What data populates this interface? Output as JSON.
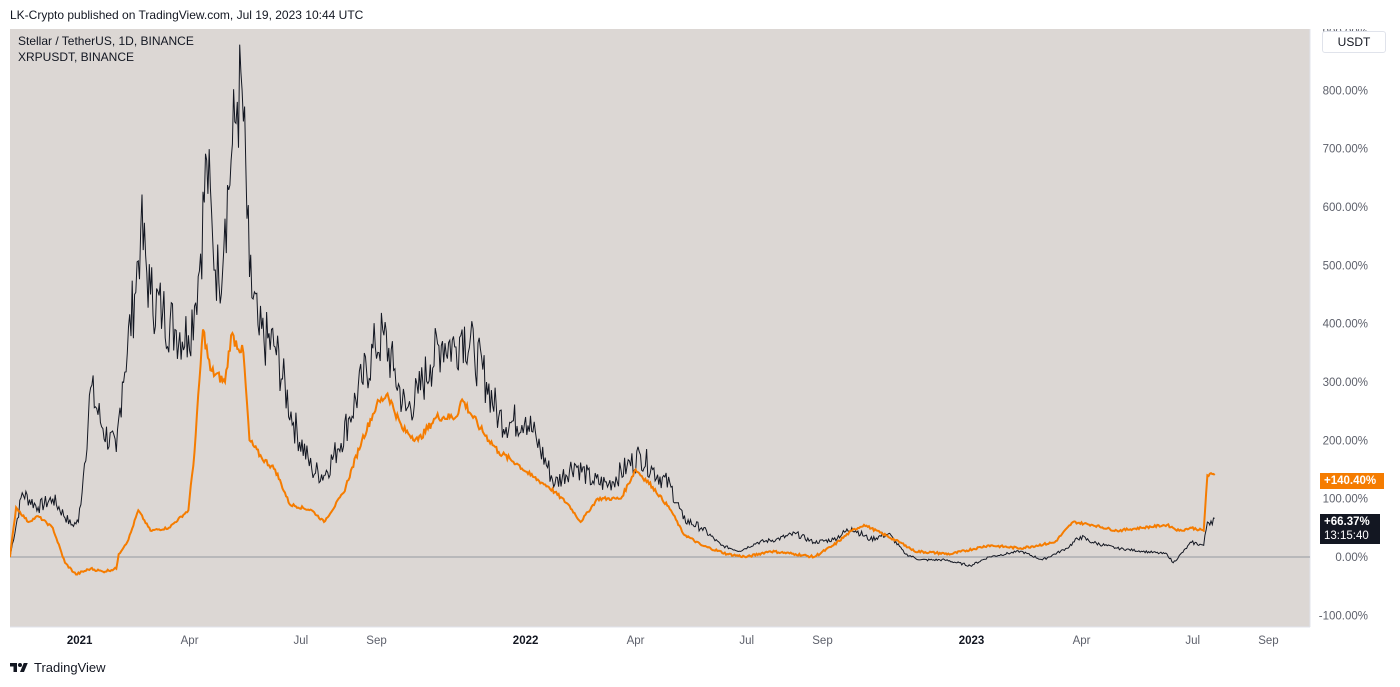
{
  "header": {
    "published": "LK-Crypto published on TradingView.com, Jul 19, 2023 10:44 UTC"
  },
  "legend": {
    "main": "Stellar / TetherUS, 1D, BINANCE",
    "compare": "XRPUSDT, BINANCE"
  },
  "currency": "USDT",
  "badges": {
    "xrp": "+140.40%",
    "xlm": "+66.37%",
    "countdown": "13:15:40"
  },
  "footer": {
    "brand": "TradingView"
  },
  "colors": {
    "background": "#dcd7d4",
    "xlm": "#131722",
    "xrp": "#f57c00",
    "zero_line": "#9598a1"
  },
  "chart_data": {
    "type": "line",
    "title": "",
    "xlabel": "",
    "ylabel": "",
    "ylim": [
      -120,
      905
    ],
    "y_ticks": [
      "900.00%",
      "800.00%",
      "700.00%",
      "600.00%",
      "500.00%",
      "400.00%",
      "300.00%",
      "200.00%",
      "100.00%",
      "0.00%",
      "-100.00%"
    ],
    "y_tick_values": [
      900,
      800,
      700,
      600,
      500,
      400,
      300,
      200,
      100,
      0,
      -100
    ],
    "x_ticks": [
      {
        "label": "2021",
        "date": "2021-01-01",
        "year": true
      },
      {
        "label": "Apr",
        "date": "2021-04-01",
        "year": false
      },
      {
        "label": "Jul",
        "date": "2021-07-01",
        "year": false
      },
      {
        "label": "Sep",
        "date": "2021-09-01",
        "year": false
      },
      {
        "label": "2022",
        "date": "2022-01-01",
        "year": true
      },
      {
        "label": "Apr",
        "date": "2022-04-01",
        "year": false
      },
      {
        "label": "Jul",
        "date": "2022-07-01",
        "year": false
      },
      {
        "label": "Sep",
        "date": "2022-09-01",
        "year": false
      },
      {
        "label": "2023",
        "date": "2023-01-01",
        "year": true
      },
      {
        "label": "Apr",
        "date": "2023-04-01",
        "year": false
      },
      {
        "label": "Jul",
        "date": "2023-07-01",
        "year": false
      },
      {
        "label": "Sep",
        "date": "2023-09-01",
        "year": false
      }
    ],
    "x_range": [
      "2020-11-05",
      "2023-10-05"
    ],
    "series": [
      {
        "name": "Stellar / TetherUS, 1D, BINANCE",
        "key": "xlm",
        "points": [
          [
            "2020-11-05",
            0
          ],
          [
            "2020-11-15",
            110
          ],
          [
            "2020-11-28",
            85
          ],
          [
            "2020-12-10",
            100
          ],
          [
            "2020-12-25",
            55
          ],
          [
            "2020-12-31",
            60
          ],
          [
            "2021-01-05",
            160
          ],
          [
            "2021-01-10",
            290
          ],
          [
            "2021-01-20",
            220
          ],
          [
            "2021-01-31",
            180
          ],
          [
            "2021-02-05",
            300
          ],
          [
            "2021-02-15",
            450
          ],
          [
            "2021-02-20",
            560
          ],
          [
            "2021-02-28",
            450
          ],
          [
            "2021-03-10",
            420
          ],
          [
            "2021-03-20",
            390
          ],
          [
            "2021-03-31",
            380
          ],
          [
            "2021-04-05",
            430
          ],
          [
            "2021-04-10",
            520
          ],
          [
            "2021-04-15",
            680
          ],
          [
            "2021-04-20",
            540
          ],
          [
            "2021-04-25",
            470
          ],
          [
            "2021-04-30",
            580
          ],
          [
            "2021-05-05",
            680
          ],
          [
            "2021-05-10",
            780
          ],
          [
            "2021-05-14",
            800
          ],
          [
            "2021-05-20",
            480
          ],
          [
            "2021-05-28",
            380
          ],
          [
            "2021-06-10",
            360
          ],
          [
            "2021-06-25",
            230
          ],
          [
            "2021-07-10",
            150
          ],
          [
            "2021-07-20",
            140
          ],
          [
            "2021-07-31",
            185
          ],
          [
            "2021-08-10",
            240
          ],
          [
            "2021-08-20",
            300
          ],
          [
            "2021-08-31",
            360
          ],
          [
            "2021-09-07",
            380
          ],
          [
            "2021-09-15",
            320
          ],
          [
            "2021-09-25",
            250
          ],
          [
            "2021-10-05",
            280
          ],
          [
            "2021-10-15",
            330
          ],
          [
            "2021-10-25",
            370
          ],
          [
            "2021-11-05",
            360
          ],
          [
            "2021-11-10",
            390
          ],
          [
            "2021-11-20",
            350
          ],
          [
            "2021-11-30",
            300
          ],
          [
            "2021-12-10",
            240
          ],
          [
            "2021-12-20",
            230
          ],
          [
            "2022-01-01",
            240
          ],
          [
            "2022-01-10",
            200
          ],
          [
            "2022-01-25",
            125
          ],
          [
            "2022-02-10",
            160
          ],
          [
            "2022-02-25",
            130
          ],
          [
            "2022-03-10",
            125
          ],
          [
            "2022-03-25",
            155
          ],
          [
            "2022-04-05",
            175
          ],
          [
            "2022-04-15",
            150
          ],
          [
            "2022-04-30",
            120
          ],
          [
            "2022-05-10",
            65
          ],
          [
            "2022-05-25",
            50
          ],
          [
            "2022-06-10",
            20
          ],
          [
            "2022-06-25",
            10
          ],
          [
            "2022-07-10",
            25
          ],
          [
            "2022-07-25",
            30
          ],
          [
            "2022-08-10",
            40
          ],
          [
            "2022-08-25",
            25
          ],
          [
            "2022-09-10",
            30
          ],
          [
            "2022-09-25",
            50
          ],
          [
            "2022-10-10",
            30
          ],
          [
            "2022-10-25",
            40
          ],
          [
            "2022-11-08",
            5
          ],
          [
            "2022-11-20",
            -5
          ],
          [
            "2022-12-10",
            -5
          ],
          [
            "2022-12-31",
            -15
          ],
          [
            "2023-01-15",
            0
          ],
          [
            "2023-02-10",
            10
          ],
          [
            "2023-02-28",
            -5
          ],
          [
            "2023-03-20",
            15
          ],
          [
            "2023-03-31",
            35
          ],
          [
            "2023-04-10",
            25
          ],
          [
            "2023-04-30",
            15
          ],
          [
            "2023-05-20",
            10
          ],
          [
            "2023-06-10",
            5
          ],
          [
            "2023-06-15",
            -10
          ],
          [
            "2023-06-30",
            25
          ],
          [
            "2023-07-10",
            20
          ],
          [
            "2023-07-13",
            60
          ],
          [
            "2023-07-19",
            66.37
          ]
        ]
      },
      {
        "name": "XRPUSDT, BINANCE",
        "key": "xrp",
        "points": [
          [
            "2020-11-05",
            0
          ],
          [
            "2020-11-10",
            85
          ],
          [
            "2020-11-20",
            60
          ],
          [
            "2020-11-28",
            70
          ],
          [
            "2020-12-10",
            50
          ],
          [
            "2020-12-20",
            -10
          ],
          [
            "2020-12-29",
            -30
          ],
          [
            "2021-01-10",
            -20
          ],
          [
            "2021-01-20",
            -25
          ],
          [
            "2021-01-31",
            -20
          ],
          [
            "2021-02-02",
            5
          ],
          [
            "2021-02-10",
            30
          ],
          [
            "2021-02-18",
            80
          ],
          [
            "2021-02-28",
            45
          ],
          [
            "2021-03-15",
            50
          ],
          [
            "2021-03-31",
            80
          ],
          [
            "2021-04-05",
            180
          ],
          [
            "2021-04-12",
            390
          ],
          [
            "2021-04-18",
            320
          ],
          [
            "2021-04-30",
            300
          ],
          [
            "2021-05-05",
            380
          ],
          [
            "2021-05-15",
            350
          ],
          [
            "2021-05-20",
            200
          ],
          [
            "2021-05-30",
            170
          ],
          [
            "2021-06-10",
            150
          ],
          [
            "2021-06-22",
            90
          ],
          [
            "2021-07-10",
            80
          ],
          [
            "2021-07-20",
            60
          ],
          [
            "2021-08-05",
            110
          ],
          [
            "2021-08-20",
            200
          ],
          [
            "2021-09-01",
            260
          ],
          [
            "2021-09-10",
            280
          ],
          [
            "2021-09-22",
            220
          ],
          [
            "2021-10-05",
            200
          ],
          [
            "2021-10-20",
            240
          ],
          [
            "2021-11-05",
            240
          ],
          [
            "2021-11-10",
            270
          ],
          [
            "2021-11-25",
            220
          ],
          [
            "2021-12-10",
            180
          ],
          [
            "2021-12-25",
            160
          ],
          [
            "2022-01-05",
            140
          ],
          [
            "2022-01-20",
            120
          ],
          [
            "2022-02-05",
            90
          ],
          [
            "2022-02-15",
            60
          ],
          [
            "2022-03-01",
            100
          ],
          [
            "2022-03-20",
            100
          ],
          [
            "2022-04-01",
            150
          ],
          [
            "2022-04-15",
            120
          ],
          [
            "2022-04-30",
            80
          ],
          [
            "2022-05-10",
            40
          ],
          [
            "2022-05-25",
            20
          ],
          [
            "2022-06-15",
            5
          ],
          [
            "2022-07-01",
            0
          ],
          [
            "2022-07-20",
            10
          ],
          [
            "2022-08-10",
            5
          ],
          [
            "2022-08-25",
            0
          ],
          [
            "2022-09-10",
            20
          ],
          [
            "2022-09-25",
            45
          ],
          [
            "2022-10-05",
            55
          ],
          [
            "2022-10-20",
            40
          ],
          [
            "2022-11-08",
            20
          ],
          [
            "2022-11-15",
            10
          ],
          [
            "2022-12-15",
            5
          ],
          [
            "2023-01-15",
            20
          ],
          [
            "2023-02-10",
            15
          ],
          [
            "2023-03-10",
            25
          ],
          [
            "2023-03-25",
            60
          ],
          [
            "2023-04-10",
            55
          ],
          [
            "2023-04-30",
            45
          ],
          [
            "2023-05-20",
            50
          ],
          [
            "2023-06-10",
            55
          ],
          [
            "2023-06-20",
            45
          ],
          [
            "2023-06-30",
            50
          ],
          [
            "2023-07-10",
            45
          ],
          [
            "2023-07-13",
            140
          ],
          [
            "2023-07-19",
            140.4
          ]
        ]
      }
    ]
  }
}
